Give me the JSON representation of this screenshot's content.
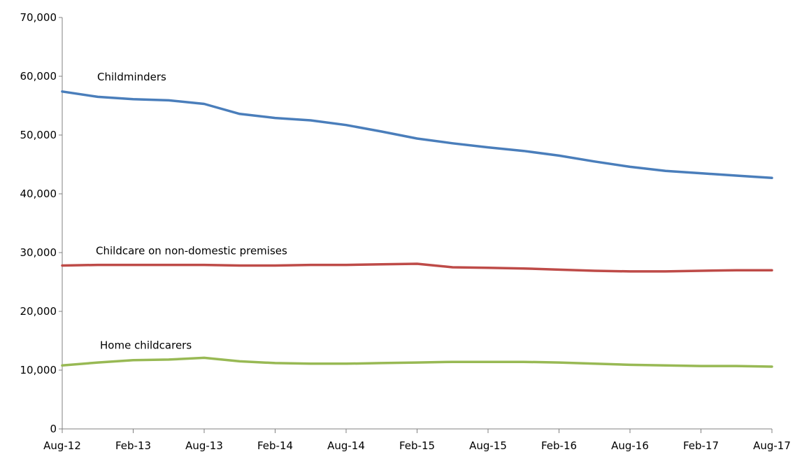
{
  "chart_data": {
    "type": "line",
    "title": "",
    "xlabel": "",
    "ylabel": "",
    "ylim": [
      0,
      70000
    ],
    "yticks": [
      "0",
      "10,000",
      "20,000",
      "30,000",
      "40,000",
      "50,000",
      "60,000",
      "70,000"
    ],
    "xticks": [
      "Aug-12",
      "Feb-13",
      "Aug-13",
      "Feb-14",
      "Aug-14",
      "Feb-15",
      "Aug-15",
      "Feb-16",
      "Aug-16",
      "Feb-17",
      "Aug-17"
    ],
    "grid": false,
    "legend": "none",
    "x": [
      "Aug-12",
      "Nov-12",
      "Feb-13",
      "May-13",
      "Aug-13",
      "Nov-13",
      "Feb-14",
      "May-14",
      "Aug-14",
      "Nov-14",
      "Feb-15",
      "May-15",
      "Aug-15",
      "Nov-15",
      "Feb-16",
      "May-16",
      "Aug-16",
      "Nov-16",
      "Feb-17",
      "May-17",
      "Aug-17"
    ],
    "series": [
      {
        "name": "Childminders",
        "color": "#4a7ebb",
        "values": [
          57400,
          56500,
          56100,
          55900,
          55300,
          53600,
          52900,
          52500,
          51700,
          50600,
          49400,
          48600,
          47900,
          47300,
          46500,
          45500,
          44600,
          43900,
          43500,
          43100,
          42700
        ]
      },
      {
        "name": "Childcare on non-domestic premises",
        "color": "#be4b48",
        "values": [
          27800,
          27900,
          27900,
          27900,
          27900,
          27800,
          27800,
          27900,
          27900,
          28000,
          28100,
          27500,
          27400,
          27300,
          27100,
          26900,
          26800,
          26800,
          26900,
          27000,
          27000
        ]
      },
      {
        "name": "Home childcarers",
        "color": "#98b954",
        "values": [
          10800,
          11300,
          11700,
          11800,
          12100,
          11500,
          11200,
          11100,
          11100,
          11200,
          11300,
          11400,
          11400,
          11400,
          11300,
          11100,
          10900,
          10800,
          10700,
          10700,
          10600
        ]
      }
    ]
  }
}
